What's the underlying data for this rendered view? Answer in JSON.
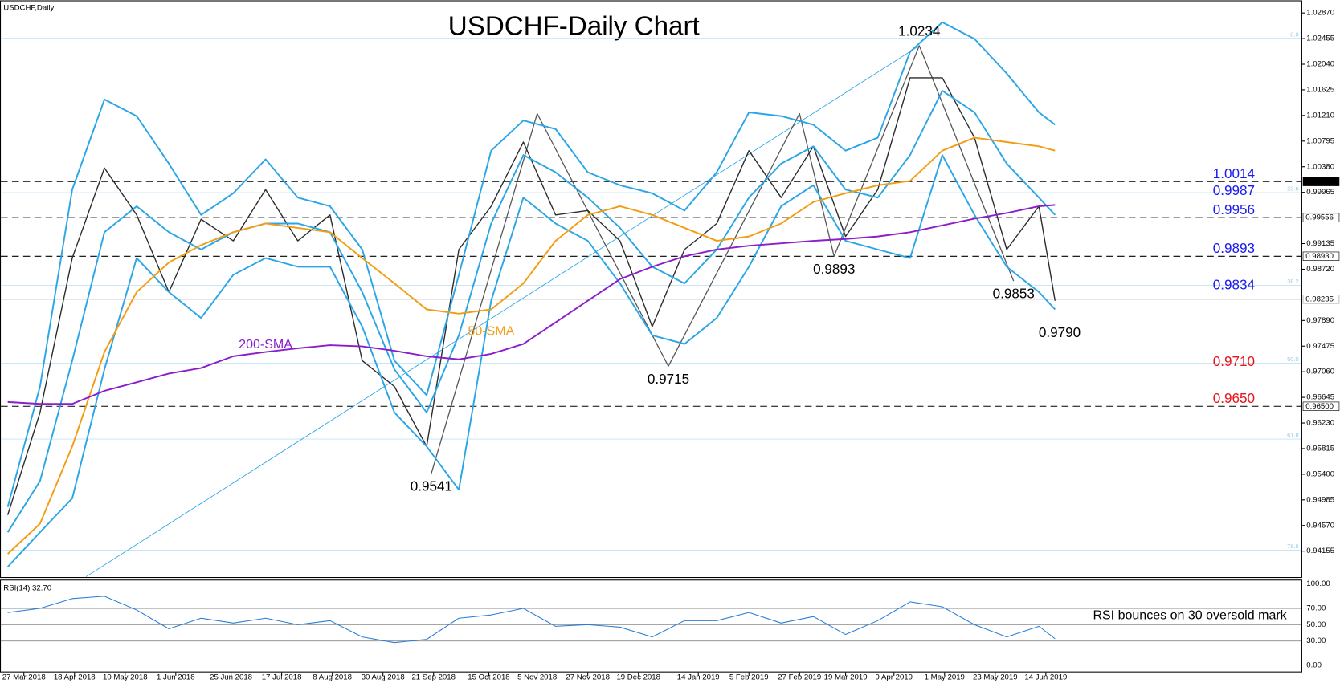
{
  "chart_data": {
    "type": "line",
    "title": "USDCHF-Daily Chart",
    "symbol_label": "USDCHF,Daily",
    "xlim": [
      "2018-03-17",
      "2019-10-03"
    ],
    "xticks": [
      {
        "value": "2018-03-27",
        "label": "27 Mar 2018"
      },
      {
        "value": "2018-04-18",
        "label": "18 Apr 2018"
      },
      {
        "value": "2018-05-10",
        "label": "10 May 2018"
      },
      {
        "value": "2018-06-01",
        "label": "1 Jun 2018"
      },
      {
        "value": "2018-06-25",
        "label": "25 Jun 2018"
      },
      {
        "value": "2018-07-17",
        "label": "17 Jul 2018"
      },
      {
        "value": "2018-08-08",
        "label": "8 Aug 2018"
      },
      {
        "value": "2018-08-30",
        "label": "30 Aug 2018"
      },
      {
        "value": "2018-09-21",
        "label": "21 Sep 2018"
      },
      {
        "value": "2018-10-15",
        "label": "15 Oct 2018"
      },
      {
        "value": "2018-11-05",
        "label": "5 Nov 2018"
      },
      {
        "value": "2018-11-27",
        "label": "27 Nov 2018"
      },
      {
        "value": "2018-12-19",
        "label": "19 Dec 2018"
      },
      {
        "value": "2019-01-14",
        "label": "14 Jan 2019"
      },
      {
        "value": "2019-02-05",
        "label": "5 Feb 2019"
      },
      {
        "value": "2019-02-27",
        "label": "27 Feb 2019"
      },
      {
        "value": "2019-03-19",
        "label": "19 Mar 2019"
      },
      {
        "value": "2019-04-09",
        "label": "9 Apr 2019"
      },
      {
        "value": "2019-05-01",
        "label": "1 May 2019"
      },
      {
        "value": "2019-05-23",
        "label": "23 May 2019"
      },
      {
        "value": "2019-06-14",
        "label": "14 Jun 2019"
      }
    ],
    "ylim": [
      0.93735,
      1.03032
    ],
    "yticks": [
      {
        "value": 1.0287,
        "label": "1.02870"
      },
      {
        "value": 1.02455,
        "label": "1.02455"
      },
      {
        "value": 1.0204,
        "label": "1.02040"
      },
      {
        "value": 1.01625,
        "label": "1.01625"
      },
      {
        "value": 1.0121,
        "label": "1.01210"
      },
      {
        "value": 1.00795,
        "label": "1.00795"
      },
      {
        "value": 1.0038,
        "label": "1.00380"
      },
      {
        "value": 0.99965,
        "label": "0.99965"
      },
      {
        "value": 0.99135,
        "label": "0.99135"
      },
      {
        "value": 0.9872,
        "label": "0.98720"
      },
      {
        "value": 0.9789,
        "label": "0.97890"
      },
      {
        "value": 0.97475,
        "label": "0.97475"
      },
      {
        "value": 0.9706,
        "label": "0.97060"
      },
      {
        "value": 0.96645,
        "label": "0.96645"
      },
      {
        "value": 0.9623,
        "label": "0.96230"
      },
      {
        "value": 0.95815,
        "label": "0.95815"
      },
      {
        "value": 0.954,
        "label": "0.95400"
      },
      {
        "value": 0.94985,
        "label": "0.94985"
      },
      {
        "value": 0.9457,
        "label": "0.94570"
      },
      {
        "value": 0.94155,
        "label": "0.94155"
      }
    ],
    "x": [
      "2018-03-20",
      "2018-04-03",
      "2018-04-17",
      "2018-05-01",
      "2018-05-15",
      "2018-05-29",
      "2018-06-12",
      "2018-06-26",
      "2018-07-10",
      "2018-07-24",
      "2018-08-07",
      "2018-08-21",
      "2018-09-04",
      "2018-09-18",
      "2018-10-02",
      "2018-10-16",
      "2018-10-30",
      "2018-11-13",
      "2018-11-27",
      "2018-12-11",
      "2018-12-25",
      "2019-01-08",
      "2019-01-22",
      "2019-02-05",
      "2019-02-19",
      "2019-03-05",
      "2019-03-19",
      "2019-04-02",
      "2019-04-16",
      "2019-04-30",
      "2019-05-14",
      "2019-05-28",
      "2019-06-11",
      "2019-06-18"
    ],
    "series": [
      {
        "color": "#2b2b2b",
        "values": [
          0.9474,
          0.964,
          0.989,
          1.0036,
          0.996,
          0.9835,
          0.9953,
          0.9918,
          1.0001,
          0.9918,
          0.996,
          0.9724,
          0.9682,
          0.9585,
          0.9904,
          0.9974,
          1.0078,
          0.996,
          0.9967,
          0.9918,
          0.9779,
          0.9904,
          0.9946,
          1.0064,
          0.9988,
          1.0071,
          0.9925,
          1.0001,
          1.0182,
          1.0182,
          1.0085,
          0.9904,
          0.9974,
          0.9821
        ]
      },
      {
        "color": "#2aa5e6",
        "values": [
          0.9487,
          0.9682,
          1.0001,
          1.0147,
          1.012,
          1.0043,
          0.996,
          0.9995,
          1.005,
          0.9988,
          0.9974,
          0.9904,
          0.9724,
          0.9668,
          0.9863,
          1.0064,
          1.0113,
          1.0099,
          1.0029,
          1.0008,
          0.9995,
          0.9967,
          1.0029,
          1.0126,
          1.012,
          1.0106,
          1.0064,
          1.0085,
          1.0224,
          1.0272,
          1.0245,
          1.0189,
          1.0126,
          1.0106
        ]
      },
      {
        "color": "#2aa5e6",
        "values": [
          0.9446,
          0.9529,
          0.9724,
          0.9932,
          0.9974,
          0.9932,
          0.9904,
          0.9932,
          0.9946,
          0.9946,
          0.9932,
          0.9835,
          0.971,
          0.964,
          0.9765,
          0.9946,
          1.0057,
          1.0029,
          0.9988,
          0.9939,
          0.9876,
          0.9849,
          0.9904,
          0.9988,
          1.0043,
          1.0071,
          1.0001,
          0.9988,
          1.0057,
          1.0161,
          1.0126,
          1.0043,
          0.9988,
          0.996
        ]
      },
      {
        "color": "#2aa5e6",
        "values": [
          0.939,
          0.9446,
          0.9501,
          0.971,
          0.989,
          0.9835,
          0.9793,
          0.9863,
          0.989,
          0.9876,
          0.9876,
          0.9779,
          0.964,
          0.9585,
          0.9515,
          0.9821,
          0.9988,
          0.9946,
          0.9918,
          0.9849,
          0.9765,
          0.9751,
          0.9793,
          0.9876,
          0.9974,
          1.0008,
          0.9918,
          0.9904,
          0.989,
          1.0057,
          0.996,
          0.9876,
          0.9835,
          0.9807
        ]
      },
      {
        "name": "50-SMA",
        "color": "#f39c12",
        "values": [
          0.9411,
          0.946,
          0.9585,
          0.9738,
          0.9835,
          0.9883,
          0.9911,
          0.9932,
          0.9946,
          0.9939,
          0.9932,
          0.989,
          0.9849,
          0.9807,
          0.98,
          0.9807,
          0.9849,
          0.9918,
          0.996,
          0.9974,
          0.996,
          0.9939,
          0.9918,
          0.9925,
          0.9946,
          0.9981,
          0.9995,
          1.0008,
          1.0015,
          1.0064,
          1.0085,
          1.0078,
          1.0071,
          1.0064
        ]
      },
      {
        "name": "200-SMA",
        "color": "#8a1fc9",
        "values": [
          0.9657,
          0.9654,
          0.9654,
          0.9675,
          0.9689,
          0.9703,
          0.9712,
          0.9731,
          0.9738,
          0.9744,
          0.9749,
          0.9747,
          0.974,
          0.9731,
          0.9726,
          0.9735,
          0.9751,
          0.9786,
          0.9821,
          0.9856,
          0.9876,
          0.9893,
          0.9904,
          0.991,
          0.9914,
          0.9918,
          0.9921,
          0.9925,
          0.9932,
          0.9943,
          0.9954,
          0.9963,
          0.9974,
          0.9976
        ]
      }
    ],
    "zigzag": {
      "color": "#555555",
      "x": [
        "2018-09-20",
        "2018-11-05",
        "2019-01-01",
        "2019-02-27",
        "2019-03-14",
        "2019-04-20",
        "2019-05-31"
      ],
      "values": [
        0.9541,
        1.0124,
        0.9715,
        1.0124,
        0.9893,
        1.0234,
        0.9853
      ]
    },
    "fib_line": {
      "color": "#2aa5e6",
      "x": [
        "2018-04-23",
        "2019-04-20"
      ],
      "values": [
        0.9374,
        1.0234
      ]
    },
    "fib_levels": [
      {
        "value": 1.0246,
        "label": "0.0"
      },
      {
        "value": 0.9996,
        "label": "23.6"
      },
      {
        "value": 0.9846,
        "label": "38.2"
      },
      {
        "value": 0.972,
        "label": "50.0"
      },
      {
        "value": 0.9597,
        "label": "61.8"
      },
      {
        "value": 0.9417,
        "label": "78.6"
      }
    ],
    "price_levels": [
      {
        "value": 1.0014,
        "label": "1.00140"
      },
      {
        "value": 0.99556,
        "label": "0.99556"
      },
      {
        "value": 0.9893,
        "label": "0.98930"
      },
      {
        "value": 0.965,
        "label": "0.96500"
      }
    ],
    "last_price": {
      "value": 0.98235,
      "label": "0.98235"
    },
    "level_labels": [
      {
        "value": 1.0014,
        "label": "1.0014",
        "color": "#1a1aee"
      },
      {
        "value": 0.9987,
        "label": "0.9987",
        "color": "#1a1aee"
      },
      {
        "value": 0.9956,
        "label": "0.9956",
        "color": "#1a1aee"
      },
      {
        "value": 0.9893,
        "label": "0.9893",
        "color": "#1a1aee"
      },
      {
        "value": 0.9834,
        "label": "0.9834",
        "color": "#1a1aee"
      },
      {
        "value": 0.971,
        "label": "0.9710",
        "color": "#e8141b"
      },
      {
        "value": 0.965,
        "label": "0.9650",
        "color": "#e8141b"
      }
    ],
    "swing_labels": [
      {
        "date": "2019-04-20",
        "value": 1.0234,
        "label": "1.0234"
      },
      {
        "date": "2019-03-14",
        "value": 0.9893,
        "label": "0.9893"
      },
      {
        "date": "2019-05-31",
        "value": 0.9853,
        "label": "0.9853"
      },
      {
        "date": "2019-06-20",
        "value": 0.979,
        "label": "0.9790"
      },
      {
        "date": "2019-01-01",
        "value": 0.9715,
        "label": "0.9715"
      },
      {
        "date": "2018-09-20",
        "value": 0.9541,
        "label": "0.9541"
      }
    ],
    "rsi": {
      "label": "RSI(14) 32.70",
      "annotation": "RSI bounces on 30 oversold mark",
      "color": "#2a7fd4",
      "ylim": [
        0,
        100
      ],
      "yticks": [
        {
          "value": 100,
          "label": "100.00"
        },
        {
          "value": 70,
          "label": "70.00"
        },
        {
          "value": 50,
          "label": "50.00"
        },
        {
          "value": 30,
          "label": "30.00"
        },
        {
          "value": 0,
          "label": "0.00"
        }
      ],
      "values": [
        65,
        70,
        82,
        85,
        68,
        45,
        58,
        52,
        58,
        50,
        55,
        35,
        28,
        32,
        58,
        62,
        70,
        48,
        50,
        47,
        35,
        55,
        55,
        65,
        52,
        60,
        38,
        55,
        78,
        72,
        50,
        35,
        48,
        32.7
      ]
    }
  }
}
